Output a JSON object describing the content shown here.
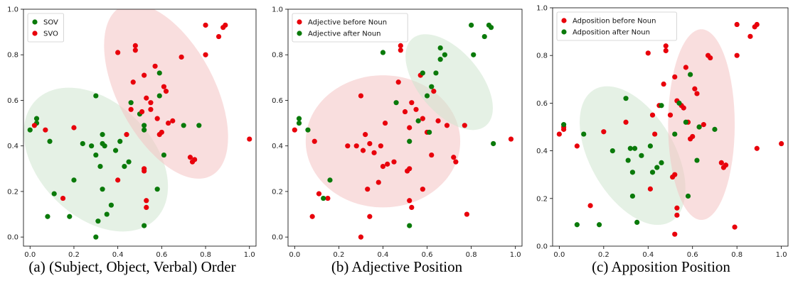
{
  "captions": [
    "(a)  (Subject, Object, Verbal) Order",
    "(b)  Adjective Position",
    "(c)  Apposition Position"
  ],
  "colors": {
    "red": "#e8000b",
    "green": "#0a7a0a",
    "red_ellipse": "#f4c2c2",
    "green_ellipse": "#cfe6cf"
  },
  "chart_data": [
    {
      "type": "scatter",
      "title": "",
      "xlabel": "",
      "ylabel": "",
      "xlim": [
        -0.03,
        1.03
      ],
      "ylim": [
        -0.04,
        1.0
      ],
      "xticks": [
        0.0,
        0.2,
        0.4,
        0.6,
        0.8,
        1.0
      ],
      "yticks": [
        0.0,
        0.2,
        0.4,
        0.6,
        0.8,
        1.0
      ],
      "legend_position": "top-left",
      "series": [
        {
          "name": "SOV",
          "color": "#0a7a0a",
          "points": [
            [
              0.0,
              0.47
            ],
            [
              0.03,
              0.5
            ],
            [
              0.03,
              0.52
            ],
            [
              0.08,
              0.09
            ],
            [
              0.09,
              0.42
            ],
            [
              0.11,
              0.19
            ],
            [
              0.18,
              0.09
            ],
            [
              0.2,
              0.25
            ],
            [
              0.24,
              0.41
            ],
            [
              0.28,
              0.4
            ],
            [
              0.3,
              0.0
            ],
            [
              0.3,
              0.62
            ],
            [
              0.3,
              0.36
            ],
            [
              0.31,
              0.07
            ],
            [
              0.32,
              0.31
            ],
            [
              0.33,
              0.21
            ],
            [
              0.33,
              0.41
            ],
            [
              0.33,
              0.45
            ],
            [
              0.34,
              0.4
            ],
            [
              0.35,
              0.1
            ],
            [
              0.37,
              0.14
            ],
            [
              0.39,
              0.38
            ],
            [
              0.41,
              0.42
            ],
            [
              0.43,
              0.31
            ],
            [
              0.45,
              0.33
            ],
            [
              0.46,
              0.59
            ],
            [
              0.5,
              0.54
            ],
            [
              0.52,
              0.05
            ],
            [
              0.52,
              0.47
            ],
            [
              0.52,
              0.49
            ],
            [
              0.58,
              0.21
            ],
            [
              0.59,
              0.62
            ],
            [
              0.59,
              0.72
            ],
            [
              0.61,
              0.36
            ],
            [
              0.7,
              0.49
            ],
            [
              0.77,
              0.49
            ]
          ]
        },
        {
          "name": "SVO",
          "color": "#e8000b",
          "points": [
            [
              0.02,
              0.49
            ],
            [
              0.07,
              0.47
            ],
            [
              0.15,
              0.17
            ],
            [
              0.2,
              0.48
            ],
            [
              0.4,
              0.81
            ],
            [
              0.4,
              0.25
            ],
            [
              0.44,
              0.45
            ],
            [
              0.46,
              0.56
            ],
            [
              0.47,
              0.68
            ],
            [
              0.48,
              0.82
            ],
            [
              0.48,
              0.84
            ],
            [
              0.51,
              0.55
            ],
            [
              0.52,
              0.29
            ],
            [
              0.52,
              0.3
            ],
            [
              0.52,
              0.71
            ],
            [
              0.53,
              0.16
            ],
            [
              0.53,
              0.13
            ],
            [
              0.53,
              0.61
            ],
            [
              0.55,
              0.59
            ],
            [
              0.55,
              0.56
            ],
            [
              0.57,
              0.75
            ],
            [
              0.58,
              0.52
            ],
            [
              0.59,
              0.45
            ],
            [
              0.6,
              0.46
            ],
            [
              0.61,
              0.66
            ],
            [
              0.62,
              0.64
            ],
            [
              0.63,
              0.5
            ],
            [
              0.65,
              0.51
            ],
            [
              0.69,
              0.79
            ],
            [
              0.73,
              0.35
            ],
            [
              0.74,
              0.33
            ],
            [
              0.75,
              0.34
            ],
            [
              0.8,
              0.93
            ],
            [
              0.8,
              0.8
            ],
            [
              0.86,
              0.88
            ],
            [
              0.88,
              0.92
            ],
            [
              0.89,
              0.93
            ],
            [
              1.0,
              0.43
            ]
          ]
        }
      ],
      "ellipses": [
        {
          "cx": 0.3,
          "cy": 0.34,
          "rx": 0.26,
          "ry": 0.37,
          "angle_deg": 45,
          "color": "#cfe6cf"
        },
        {
          "cx": 0.62,
          "cy": 0.64,
          "rx": 0.22,
          "ry": 0.42,
          "angle_deg": 28,
          "color": "#f4c2c2"
        }
      ]
    },
    {
      "type": "scatter",
      "title": "",
      "xlabel": "",
      "ylabel": "",
      "xlim": [
        -0.03,
        1.03
      ],
      "ylim": [
        -0.04,
        1.0
      ],
      "xticks": [
        0.0,
        0.2,
        0.4,
        0.6,
        0.8,
        1.0
      ],
      "yticks": [
        0.0,
        0.2,
        0.4,
        0.6,
        0.8,
        1.0
      ],
      "legend_position": "top-left",
      "series": [
        {
          "name": "Adjective before Noun",
          "color": "#e8000b",
          "points": [
            [
              0.0,
              0.47
            ],
            [
              0.08,
              0.09
            ],
            [
              0.09,
              0.42
            ],
            [
              0.11,
              0.19
            ],
            [
              0.15,
              0.17
            ],
            [
              0.24,
              0.4
            ],
            [
              0.28,
              0.4
            ],
            [
              0.3,
              0.62
            ],
            [
              0.3,
              0.0
            ],
            [
              0.31,
              0.38
            ],
            [
              0.32,
              0.45
            ],
            [
              0.33,
              0.21
            ],
            [
              0.34,
              0.41
            ],
            [
              0.34,
              0.09
            ],
            [
              0.36,
              0.37
            ],
            [
              0.38,
              0.24
            ],
            [
              0.39,
              0.4
            ],
            [
              0.4,
              0.31
            ],
            [
              0.41,
              0.5
            ],
            [
              0.42,
              0.32
            ],
            [
              0.45,
              0.33
            ],
            [
              0.47,
              0.68
            ],
            [
              0.48,
              0.82
            ],
            [
              0.48,
              0.84
            ],
            [
              0.5,
              0.55
            ],
            [
              0.51,
              0.29
            ],
            [
              0.52,
              0.3
            ],
            [
              0.52,
              0.48
            ],
            [
              0.52,
              0.16
            ],
            [
              0.53,
              0.13
            ],
            [
              0.53,
              0.59
            ],
            [
              0.55,
              0.56
            ],
            [
              0.57,
              0.71
            ],
            [
              0.58,
              0.52
            ],
            [
              0.58,
              0.21
            ],
            [
              0.6,
              0.46
            ],
            [
              0.62,
              0.36
            ],
            [
              0.63,
              0.64
            ],
            [
              0.65,
              0.51
            ],
            [
              0.69,
              0.49
            ],
            [
              0.72,
              0.35
            ],
            [
              0.73,
              0.33
            ],
            [
              0.77,
              0.49
            ],
            [
              0.78,
              0.1
            ],
            [
              0.98,
              0.43
            ]
          ]
        },
        {
          "name": "Adjective after Noun",
          "color": "#0a7a0a",
          "points": [
            [
              0.02,
              0.5
            ],
            [
              0.02,
              0.52
            ],
            [
              0.06,
              0.47
            ],
            [
              0.13,
              0.17
            ],
            [
              0.16,
              0.25
            ],
            [
              0.4,
              0.81
            ],
            [
              0.46,
              0.59
            ],
            [
              0.52,
              0.05
            ],
            [
              0.52,
              0.42
            ],
            [
              0.56,
              0.51
            ],
            [
              0.58,
              0.72
            ],
            [
              0.6,
              0.62
            ],
            [
              0.61,
              0.46
            ],
            [
              0.62,
              0.66
            ],
            [
              0.64,
              0.72
            ],
            [
              0.66,
              0.78
            ],
            [
              0.66,
              0.83
            ],
            [
              0.68,
              0.8
            ],
            [
              0.8,
              0.93
            ],
            [
              0.81,
              0.8
            ],
            [
              0.86,
              0.88
            ],
            [
              0.88,
              0.93
            ],
            [
              0.89,
              0.92
            ],
            [
              0.9,
              0.41
            ]
          ]
        }
      ],
      "ellipses": [
        {
          "cx": 0.4,
          "cy": 0.42,
          "rx": 0.35,
          "ry": 0.29,
          "angle_deg": 0,
          "color": "#f4c2c2"
        },
        {
          "cx": 0.7,
          "cy": 0.68,
          "rx": 0.14,
          "ry": 0.25,
          "angle_deg": 40,
          "color": "#cfe6cf"
        }
      ]
    },
    {
      "type": "scatter",
      "title": "",
      "xlabel": "",
      "ylabel": "",
      "xlim": [
        -0.03,
        1.03
      ],
      "ylim": [
        0.0,
        1.0
      ],
      "xticks": [
        0.0,
        0.2,
        0.4,
        0.6,
        0.8,
        1.0
      ],
      "yticks": [
        0.0,
        0.2,
        0.4,
        0.6,
        0.8,
        1.0
      ],
      "legend_position": "top-left",
      "series": [
        {
          "name": "Adposition before Noun",
          "color": "#e8000b",
          "points": [
            [
              0.0,
              0.47
            ],
            [
              0.02,
              0.49
            ],
            [
              0.02,
              0.5
            ],
            [
              0.08,
              0.42
            ],
            [
              0.14,
              0.17
            ],
            [
              0.2,
              0.48
            ],
            [
              0.3,
              0.52
            ],
            [
              0.4,
              0.81
            ],
            [
              0.41,
              0.24
            ],
            [
              0.42,
              0.55
            ],
            [
              0.43,
              0.47
            ],
            [
              0.45,
              0.59
            ],
            [
              0.47,
              0.68
            ],
            [
              0.48,
              0.82
            ],
            [
              0.48,
              0.84
            ],
            [
              0.5,
              0.55
            ],
            [
              0.51,
              0.29
            ],
            [
              0.52,
              0.3
            ],
            [
              0.52,
              0.71
            ],
            [
              0.53,
              0.16
            ],
            [
              0.53,
              0.13
            ],
            [
              0.53,
              0.61
            ],
            [
              0.55,
              0.59
            ],
            [
              0.56,
              0.58
            ],
            [
              0.57,
              0.75
            ],
            [
              0.58,
              0.52
            ],
            [
              0.59,
              0.45
            ],
            [
              0.6,
              0.46
            ],
            [
              0.61,
              0.66
            ],
            [
              0.62,
              0.64
            ],
            [
              0.63,
              0.5
            ],
            [
              0.65,
              0.51
            ],
            [
              0.67,
              0.8
            ],
            [
              0.68,
              0.79
            ],
            [
              0.73,
              0.35
            ],
            [
              0.74,
              0.33
            ],
            [
              0.75,
              0.34
            ],
            [
              0.8,
              0.93
            ],
            [
              0.8,
              0.8
            ],
            [
              0.86,
              0.88
            ],
            [
              0.88,
              0.92
            ],
            [
              0.89,
              0.93
            ],
            [
              0.89,
              0.41
            ],
            [
              1.0,
              0.43
            ],
            [
              0.52,
              0.05
            ],
            [
              0.79,
              0.08
            ]
          ]
        },
        {
          "name": "Adposition after Noun",
          "color": "#0a7a0a",
          "points": [
            [
              0.02,
              0.51
            ],
            [
              0.08,
              0.09
            ],
            [
              0.11,
              0.47
            ],
            [
              0.18,
              0.09
            ],
            [
              0.24,
              0.4
            ],
            [
              0.3,
              0.62
            ],
            [
              0.31,
              0.36
            ],
            [
              0.32,
              0.41
            ],
            [
              0.33,
              0.31
            ],
            [
              0.33,
              0.21
            ],
            [
              0.34,
              0.41
            ],
            [
              0.35,
              0.1
            ],
            [
              0.37,
              0.38
            ],
            [
              0.41,
              0.42
            ],
            [
              0.42,
              0.31
            ],
            [
              0.44,
              0.33
            ],
            [
              0.46,
              0.35
            ],
            [
              0.46,
              0.59
            ],
            [
              0.52,
              0.47
            ],
            [
              0.54,
              0.6
            ],
            [
              0.57,
              0.52
            ],
            [
              0.58,
              0.21
            ],
            [
              0.59,
              0.72
            ],
            [
              0.62,
              0.36
            ],
            [
              0.63,
              0.5
            ],
            [
              0.7,
              0.49
            ]
          ]
        }
      ],
      "ellipses": [
        {
          "cx": 0.33,
          "cy": 0.38,
          "rx": 0.19,
          "ry": 0.32,
          "angle_deg": 30,
          "color": "#cfe6cf"
        },
        {
          "cx": 0.64,
          "cy": 0.51,
          "rx": 0.15,
          "ry": 0.4,
          "angle_deg": 0,
          "color": "#f4c2c2"
        }
      ]
    }
  ]
}
